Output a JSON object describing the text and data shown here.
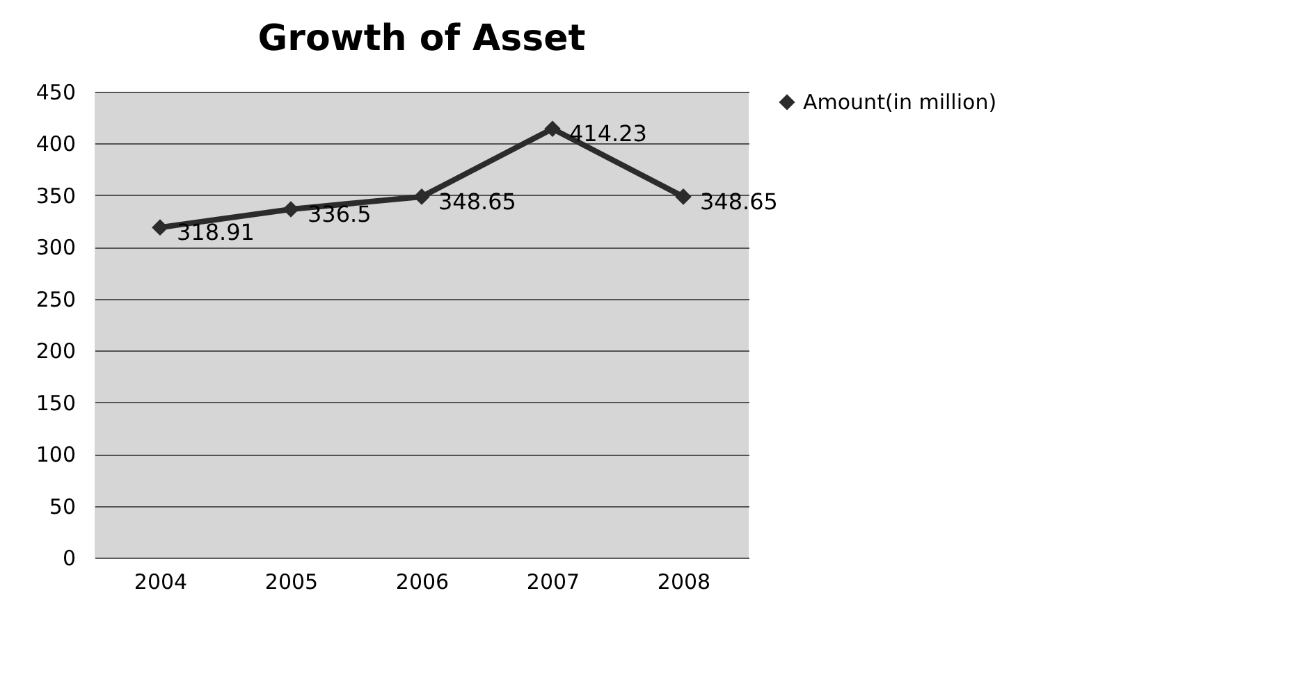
{
  "chart_data": {
    "type": "line",
    "title": "Growth of Asset",
    "categories": [
      "2004",
      "2005",
      "2006",
      "2007",
      "2008"
    ],
    "series": [
      {
        "name": "Amount(in million)",
        "color": "#2b2b2b",
        "values": [
          318.91,
          336.5,
          348.65,
          414.23,
          348.65
        ]
      }
    ],
    "ylim": [
      0,
      450
    ],
    "yticks": [
      0,
      50,
      100,
      150,
      200,
      250,
      300,
      350,
      400,
      450
    ],
    "grid": "y",
    "legend": "right",
    "marker": "diamond",
    "line_style": "solid",
    "data_labels": true
  }
}
